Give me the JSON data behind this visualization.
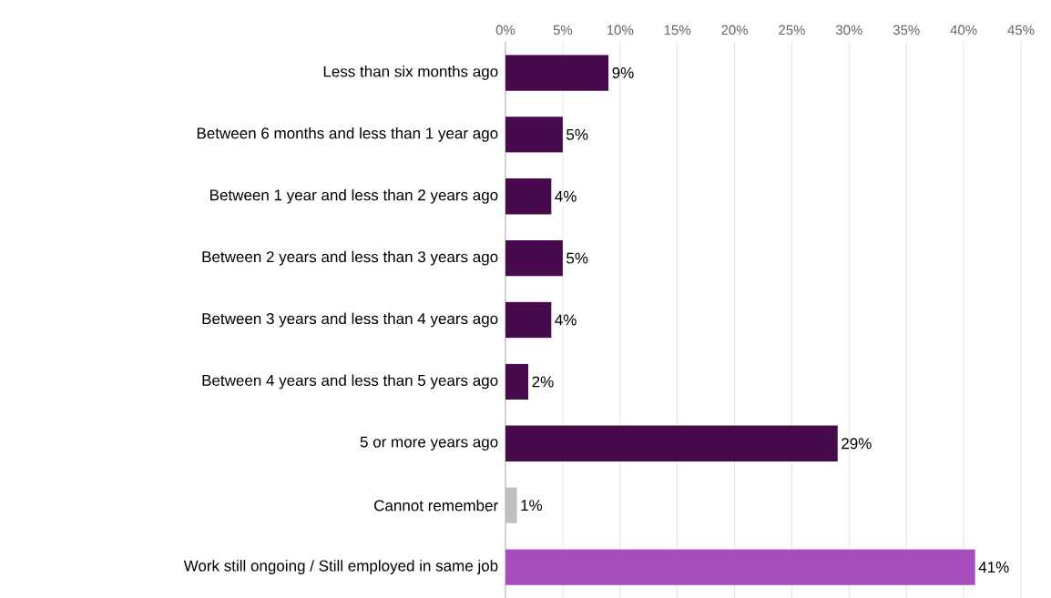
{
  "chart_data": {
    "type": "bar",
    "orientation": "horizontal",
    "categories": [
      "Less than six months ago",
      "Between 6 months and less than 1 year ago",
      "Between 1 year and less than 2 years ago",
      "Between 2 years and less than 3 years ago",
      "Between 3 years and less than 4 years ago",
      "Between 4 years and less than 5 years ago",
      "5 or more years ago",
      "Cannot remember",
      "Work still ongoing / Still employed in same job"
    ],
    "values": [
      9,
      5,
      4,
      5,
      4,
      2,
      29,
      1,
      41
    ],
    "value_labels": [
      "9%",
      "5%",
      "4%",
      "5%",
      "4%",
      "2%",
      "29%",
      "1%",
      "41%"
    ],
    "colors": [
      "#470b4d",
      "#470b4d",
      "#470b4d",
      "#470b4d",
      "#470b4d",
      "#470b4d",
      "#470b4d",
      "#bfbfbf",
      "#a64cbd"
    ],
    "xlim": [
      0,
      45
    ],
    "xticks": [
      {
        "value": 0,
        "label": "0%"
      },
      {
        "value": 5,
        "label": "5%"
      },
      {
        "value": 10,
        "label": "10%"
      },
      {
        "value": 15,
        "label": "15%"
      },
      {
        "value": 20,
        "label": "20%"
      },
      {
        "value": 25,
        "label": "25%"
      },
      {
        "value": 30,
        "label": "30%"
      },
      {
        "value": 35,
        "label": "35%"
      },
      {
        "value": 40,
        "label": "40%"
      },
      {
        "value": 45,
        "label": "45%"
      }
    ],
    "grid": "x"
  }
}
